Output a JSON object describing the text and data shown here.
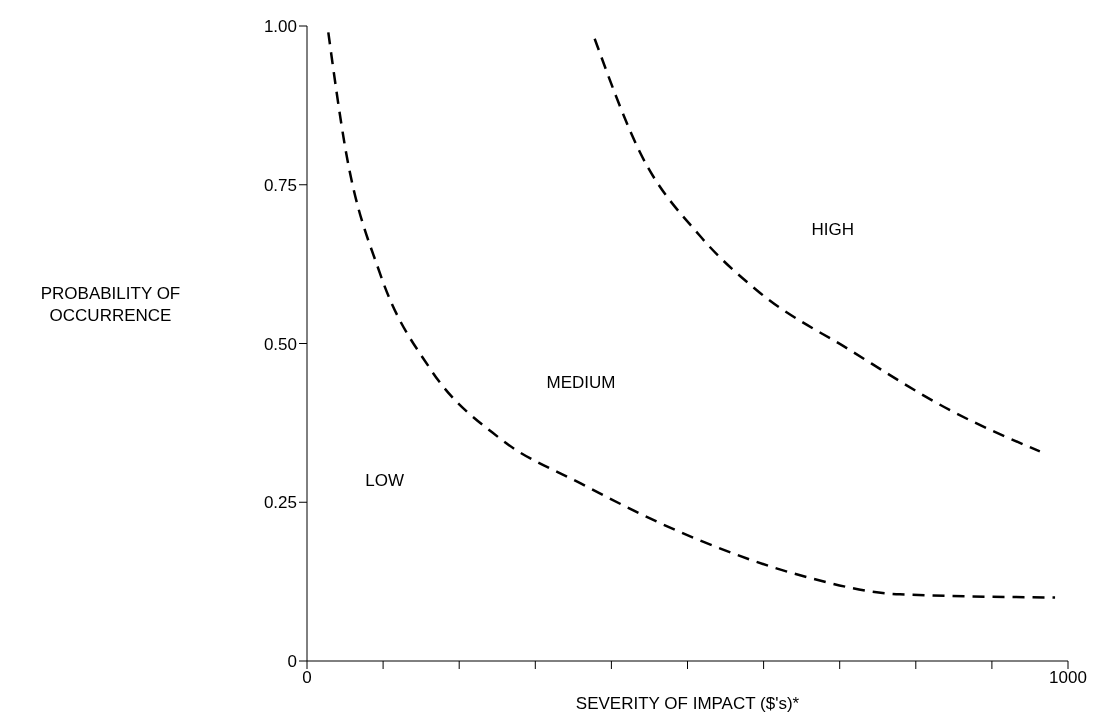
{
  "chart_data": {
    "type": "line",
    "xlabel": "SEVERITY OF IMPACT ($'s)*",
    "ylabel": "PROBABILITY OF\nOCCURRENCE",
    "xlim": [
      0,
      1000
    ],
    "ylim": [
      0,
      1
    ],
    "xticks": [
      0,
      {
        "value": 100,
        "label": null
      },
      {
        "value": 200,
        "label": null
      },
      {
        "value": 300,
        "label": null
      },
      {
        "value": 400,
        "label": null
      },
      {
        "value": 500,
        "label": null
      },
      {
        "value": 600,
        "label": null
      },
      {
        "value": 700,
        "label": null
      },
      {
        "value": 800,
        "label": null
      },
      {
        "value": 900,
        "label": null
      },
      1000
    ],
    "yticks": [
      0,
      {
        "value": 0.25,
        "label": "0.25"
      },
      {
        "value": 0.5,
        "label": "0.50"
      },
      {
        "value": 0.75,
        "label": "0.75"
      },
      {
        "value": 1,
        "label": "1.00"
      }
    ],
    "grid": false,
    "legend": false,
    "marker": "none",
    "line_style": "dashed",
    "series": [
      {
        "color": "#000000",
        "x": [
          28,
          50,
          96,
          162,
          254,
          359,
          516,
          648,
          779,
          983
        ],
        "values": [
          0.99,
          0.81,
          0.61,
          0.46,
          0.35,
          0.28,
          0.19,
          0.135,
          0.105,
          0.1
        ]
      },
      {
        "color": "#000000",
        "x": [
          378,
          438,
          516,
          595,
          713,
          845,
          963
        ],
        "values": [
          0.98,
          0.8,
          0.67,
          0.58,
          0.49,
          0.395,
          0.33
        ]
      }
    ],
    "annotations": [
      "HIGH",
      "MEDIUM",
      "LOW"
    ]
  }
}
